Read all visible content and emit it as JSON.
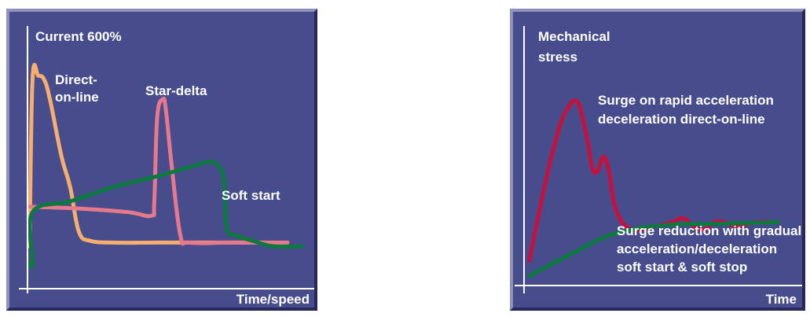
{
  "colors": {
    "panel_bg": "#474c8c",
    "panel_light_edge": "#8f92bc",
    "panel_dark_edge": "#26285a",
    "axis": "#ffffff",
    "direct_on_line": "#f6ae6e",
    "star_delta": "#e7798c",
    "soft_start": "#0b7a3e",
    "surge": "#c8103c"
  },
  "chart_data": [
    {
      "type": "line",
      "ylabel": "Current 600%",
      "xlabel": "Time/speed",
      "grid": false,
      "series": [
        {
          "name": "Direct-on-line",
          "color_key": "direct_on_line",
          "points": [
            [
              1,
              0
            ],
            [
              2,
              93
            ],
            [
              4,
              95
            ],
            [
              6,
              93
            ],
            [
              8,
              82
            ],
            [
              12,
              50
            ],
            [
              15,
              33
            ],
            [
              18,
              8
            ],
            [
              22,
              3
            ],
            [
              30,
              2
            ],
            [
              45,
              2
            ],
            [
              60,
              2
            ],
            [
              82,
              2
            ]
          ]
        },
        {
          "name": "Star-delta",
          "color_key": "star_delta",
          "points": [
            [
              1,
              22
            ],
            [
              18,
              21
            ],
            [
              35,
              19
            ],
            [
              43,
              17
            ],
            [
              44,
              25
            ],
            [
              45,
              72
            ],
            [
              47,
              82
            ],
            [
              48,
              76
            ],
            [
              50,
              45
            ],
            [
              53,
              6
            ],
            [
              56,
              2
            ],
            [
              70,
              2
            ],
            [
              90,
              2
            ]
          ]
        },
        {
          "name": "Soft start",
          "color_key": "soft_start",
          "points": [
            [
              1,
              -10
            ],
            [
              2,
              -9
            ],
            [
              2,
              19
            ],
            [
              15,
              25
            ],
            [
              30,
              33
            ],
            [
              45,
              39
            ],
            [
              58,
              45
            ],
            [
              63,
              47
            ],
            [
              66,
              45
            ],
            [
              68,
              37
            ],
            [
              69,
              10
            ],
            [
              72,
              6
            ],
            [
              78,
              3
            ],
            [
              85,
              0
            ],
            [
              95,
              0
            ]
          ]
        }
      ],
      "labels": [
        {
          "lines": [
            "Direct-",
            "on-line"
          ]
        },
        {
          "lines": [
            "Star-delta"
          ]
        },
        {
          "lines": [
            "Soft start"
          ]
        }
      ]
    },
    {
      "type": "line",
      "ylabel": "Mechanical stress",
      "xlabel": "Time",
      "grid": false,
      "series": [
        {
          "name": "Surge on rapid acceleration deceleration direct-on-line",
          "color_key": "surge",
          "points": [
            [
              2,
              8
            ],
            [
              6,
              35
            ],
            [
              10,
              60
            ],
            [
              14,
              80
            ],
            [
              17,
              88
            ],
            [
              19,
              91
            ],
            [
              21,
              88
            ],
            [
              24,
              70
            ],
            [
              26,
              55
            ],
            [
              28,
              55
            ],
            [
              30,
              62
            ],
            [
              32,
              55
            ],
            [
              34,
              38
            ],
            [
              37,
              28
            ],
            [
              42,
              24
            ],
            [
              50,
              26
            ],
            [
              56,
              28
            ],
            [
              60,
              30
            ],
            [
              64,
              26
            ],
            [
              68,
              24
            ],
            [
              72,
              28
            ],
            [
              76,
              28
            ],
            [
              80,
              26
            ],
            [
              88,
              28
            ],
            [
              96,
              28
            ]
          ]
        },
        {
          "name": "Surge reduction with gradual acceleration/deceleration soft start & soft stop",
          "color_key": "soft_start",
          "points": [
            [
              2,
              0
            ],
            [
              10,
              6
            ],
            [
              20,
              13
            ],
            [
              30,
              20
            ],
            [
              40,
              24
            ],
            [
              50,
              26
            ],
            [
              60,
              27
            ],
            [
              70,
              27
            ],
            [
              96,
              28
            ]
          ]
        }
      ],
      "labels": [
        {
          "lines": [
            "Surge on rapid acceleration",
            "deceleration direct-on-line"
          ]
        },
        {
          "lines": [
            "Surge reduction with gradual",
            "acceleration/deceleration",
            "soft start & soft stop"
          ]
        }
      ]
    }
  ]
}
